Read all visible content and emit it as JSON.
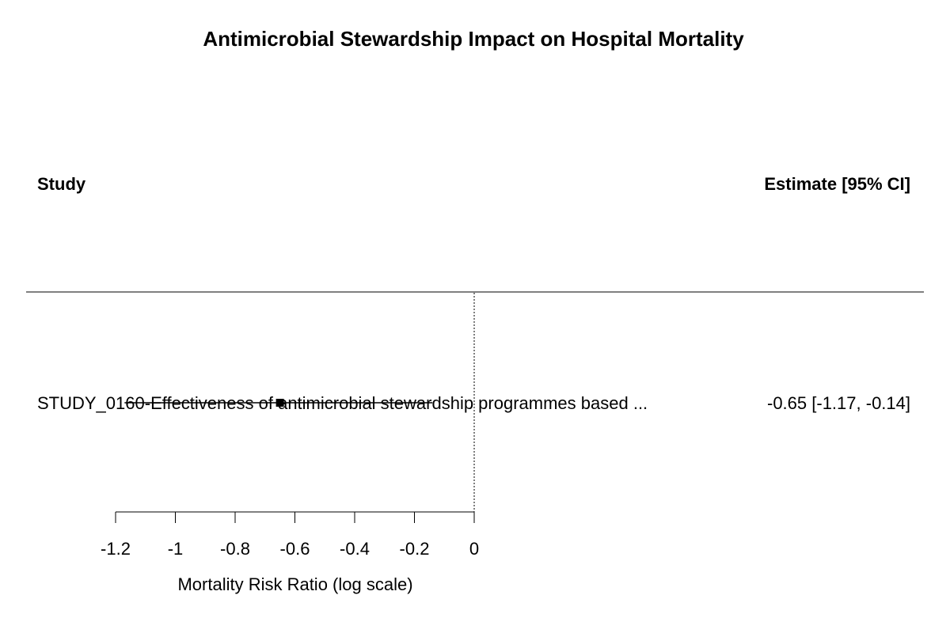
{
  "chart_data": {
    "type": "forest",
    "title": "Antimicrobial Stewardship Impact on Hospital Mortality",
    "column_headers": {
      "study": "Study",
      "estimate": "Estimate [95% CI]"
    },
    "studies": [
      {
        "label": "STUDY_0160-Effectiveness of antimicrobial stewardship programmes based ...",
        "estimate": -0.65,
        "ci_lower": -1.17,
        "ci_upper": -0.14,
        "estimate_text": "-0.65 [-1.17, -0.14]"
      }
    ],
    "reference_line": 0,
    "xlim": [
      -1.2,
      0
    ],
    "x_ticks": [
      -1.2,
      -1,
      -0.8,
      -0.6,
      -0.4,
      -0.2,
      0
    ],
    "x_tick_labels": [
      "-1.2",
      "-1",
      "-0.8",
      "-0.6",
      "-0.4",
      "-0.2",
      "0"
    ],
    "xlabel": "Mortality Risk Ratio (log scale)"
  }
}
